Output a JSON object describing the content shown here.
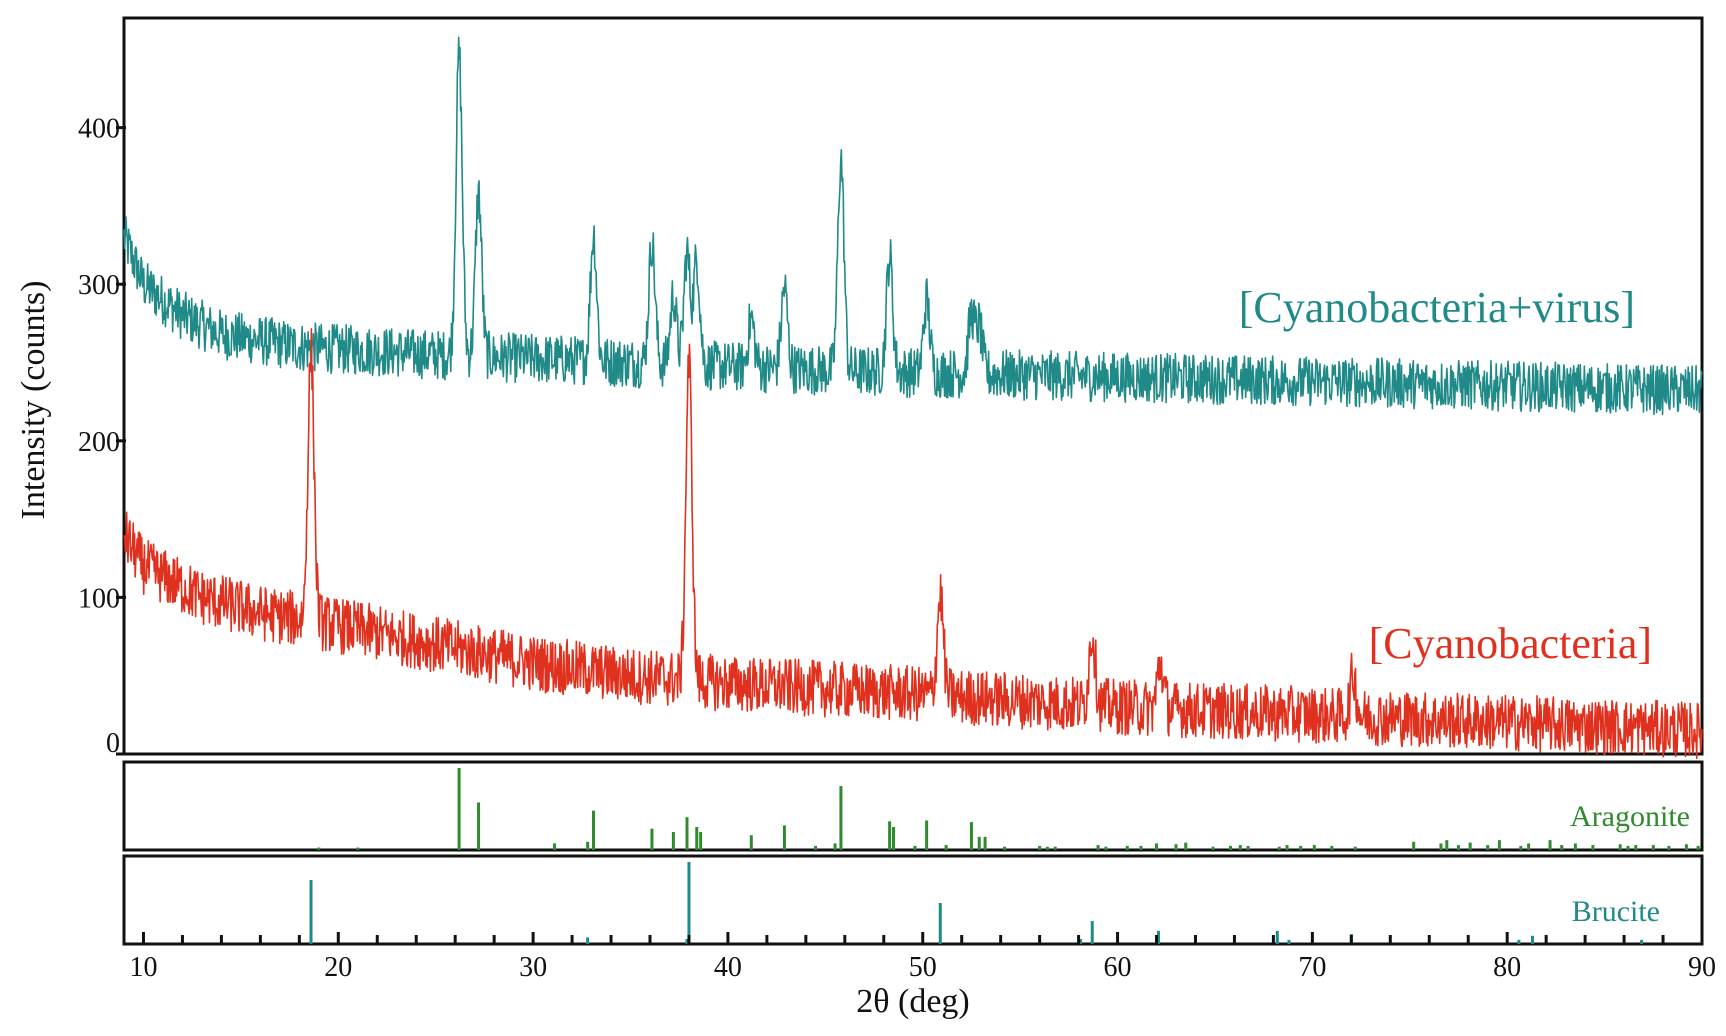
{
  "chart_data": {
    "type": "line",
    "xlabel": "2θ (deg)",
    "ylabel": "Intensity (counts)",
    "xlim": [
      9,
      90
    ],
    "ylim": [
      0,
      470
    ],
    "x_ticks": [
      10,
      20,
      30,
      40,
      50,
      60,
      70,
      80,
      90
    ],
    "y_ticks": [
      0,
      100,
      200,
      300,
      400
    ],
    "grid": false,
    "colors": {
      "cyano_virus": "#1f8a87",
      "cyano": "#e0311f",
      "aragonite": "#2e8b2e",
      "brucite": "#1f8a87"
    },
    "series": [
      {
        "name": "[Cyanobacteria+virus]",
        "color": "#1f8a87",
        "baseline": [
          [
            9,
            330
          ],
          [
            10,
            300
          ],
          [
            12,
            280
          ],
          [
            14,
            268
          ],
          [
            18,
            260
          ],
          [
            25,
            255
          ],
          [
            35,
            250
          ],
          [
            45,
            245
          ],
          [
            55,
            242
          ],
          [
            70,
            238
          ],
          [
            90,
            232
          ]
        ],
        "noise_amplitude": 16,
        "peaks": [
          {
            "x": 26.2,
            "y": 447
          },
          {
            "x": 27.2,
            "y": 358
          },
          {
            "x": 33.1,
            "y": 332
          },
          {
            "x": 36.1,
            "y": 327
          },
          {
            "x": 37.2,
            "y": 293
          },
          {
            "x": 37.9,
            "y": 320
          },
          {
            "x": 38.4,
            "y": 316
          },
          {
            "x": 41.2,
            "y": 278
          },
          {
            "x": 42.9,
            "y": 298
          },
          {
            "x": 45.8,
            "y": 380
          },
          {
            "x": 48.3,
            "y": 318
          },
          {
            "x": 50.2,
            "y": 290
          },
          {
            "x": 52.5,
            "y": 280
          },
          {
            "x": 52.9,
            "y": 272
          }
        ]
      },
      {
        "name": "[Cyanobacteria]",
        "color": "#e0311f",
        "baseline": [
          [
            9,
            140
          ],
          [
            10,
            120
          ],
          [
            13,
            100
          ],
          [
            16,
            90
          ],
          [
            20,
            82
          ],
          [
            25,
            70
          ],
          [
            30,
            58
          ],
          [
            35,
            50
          ],
          [
            40,
            45
          ],
          [
            50,
            38
          ],
          [
            60,
            30
          ],
          [
            70,
            25
          ],
          [
            80,
            20
          ],
          [
            90,
            15
          ]
        ],
        "noise_amplitude": 18,
        "peaks": [
          {
            "x": 18.6,
            "y": 256
          },
          {
            "x": 38.0,
            "y": 250
          },
          {
            "x": 50.9,
            "y": 102
          },
          {
            "x": 58.7,
            "y": 77
          },
          {
            "x": 62.2,
            "y": 58
          },
          {
            "x": 72.1,
            "y": 50
          }
        ]
      }
    ],
    "reference_patterns": [
      {
        "name": "Aragonite",
        "color": "#2e8b2e",
        "lines": [
          [
            26.2,
            100
          ],
          [
            27.2,
            58
          ],
          [
            33.1,
            48
          ],
          [
            36.1,
            26
          ],
          [
            37.2,
            22
          ],
          [
            37.9,
            40
          ],
          [
            38.4,
            28
          ],
          [
            38.6,
            22
          ],
          [
            41.2,
            18
          ],
          [
            42.9,
            30
          ],
          [
            45.8,
            78
          ],
          [
            48.3,
            35
          ],
          [
            48.5,
            28
          ],
          [
            50.2,
            36
          ],
          [
            52.5,
            34
          ],
          [
            52.9,
            16
          ],
          [
            53.2,
            16
          ],
          [
            19.0,
            3
          ],
          [
            21.0,
            3
          ],
          [
            31.1,
            8
          ],
          [
            32.8,
            10
          ],
          [
            44.5,
            5
          ],
          [
            45.5,
            8
          ],
          [
            49.6,
            5
          ],
          [
            51.2,
            6
          ],
          [
            54.2,
            4
          ],
          [
            56.0,
            5
          ],
          [
            56.4,
            4
          ],
          [
            56.8,
            4
          ],
          [
            59.0,
            6
          ],
          [
            59.4,
            4
          ],
          [
            60.5,
            5
          ],
          [
            61.2,
            5
          ],
          [
            62.0,
            8
          ],
          [
            63.0,
            7
          ],
          [
            63.5,
            9
          ],
          [
            64.9,
            4
          ],
          [
            65.8,
            5
          ],
          [
            66.3,
            6
          ],
          [
            66.7,
            5
          ],
          [
            68.3,
            4
          ],
          [
            68.7,
            6
          ],
          [
            69.4,
            5
          ],
          [
            70.1,
            6
          ],
          [
            71.0,
            5
          ],
          [
            72.2,
            4
          ],
          [
            75.2,
            10
          ],
          [
            76.6,
            8
          ],
          [
            76.9,
            12
          ],
          [
            77.5,
            6
          ],
          [
            78.1,
            9
          ],
          [
            79.0,
            6
          ],
          [
            79.6,
            12
          ],
          [
            80.7,
            5
          ],
          [
            81.1,
            8
          ],
          [
            82.2,
            12
          ],
          [
            82.8,
            6
          ],
          [
            83.5,
            8
          ],
          [
            84.4,
            6
          ],
          [
            85.8,
            7
          ],
          [
            86.2,
            5
          ],
          [
            86.6,
            6
          ],
          [
            87.5,
            6
          ],
          [
            88.3,
            5
          ],
          [
            89.2,
            7
          ],
          [
            89.8,
            5
          ]
        ]
      },
      {
        "name": "Brucite",
        "color": "#1f8a87",
        "lines": [
          [
            18.6,
            78
          ],
          [
            32.8,
            8
          ],
          [
            37.9,
            6
          ],
          [
            38.0,
            100
          ],
          [
            50.9,
            50
          ],
          [
            58.1,
            6
          ],
          [
            58.7,
            28
          ],
          [
            62.1,
            16
          ],
          [
            68.2,
            16
          ],
          [
            68.8,
            5
          ],
          [
            72.0,
            12
          ],
          [
            80.6,
            5
          ],
          [
            81.3,
            10
          ],
          [
            86.9,
            5
          ],
          [
            90.0,
            5
          ]
        ]
      }
    ]
  }
}
